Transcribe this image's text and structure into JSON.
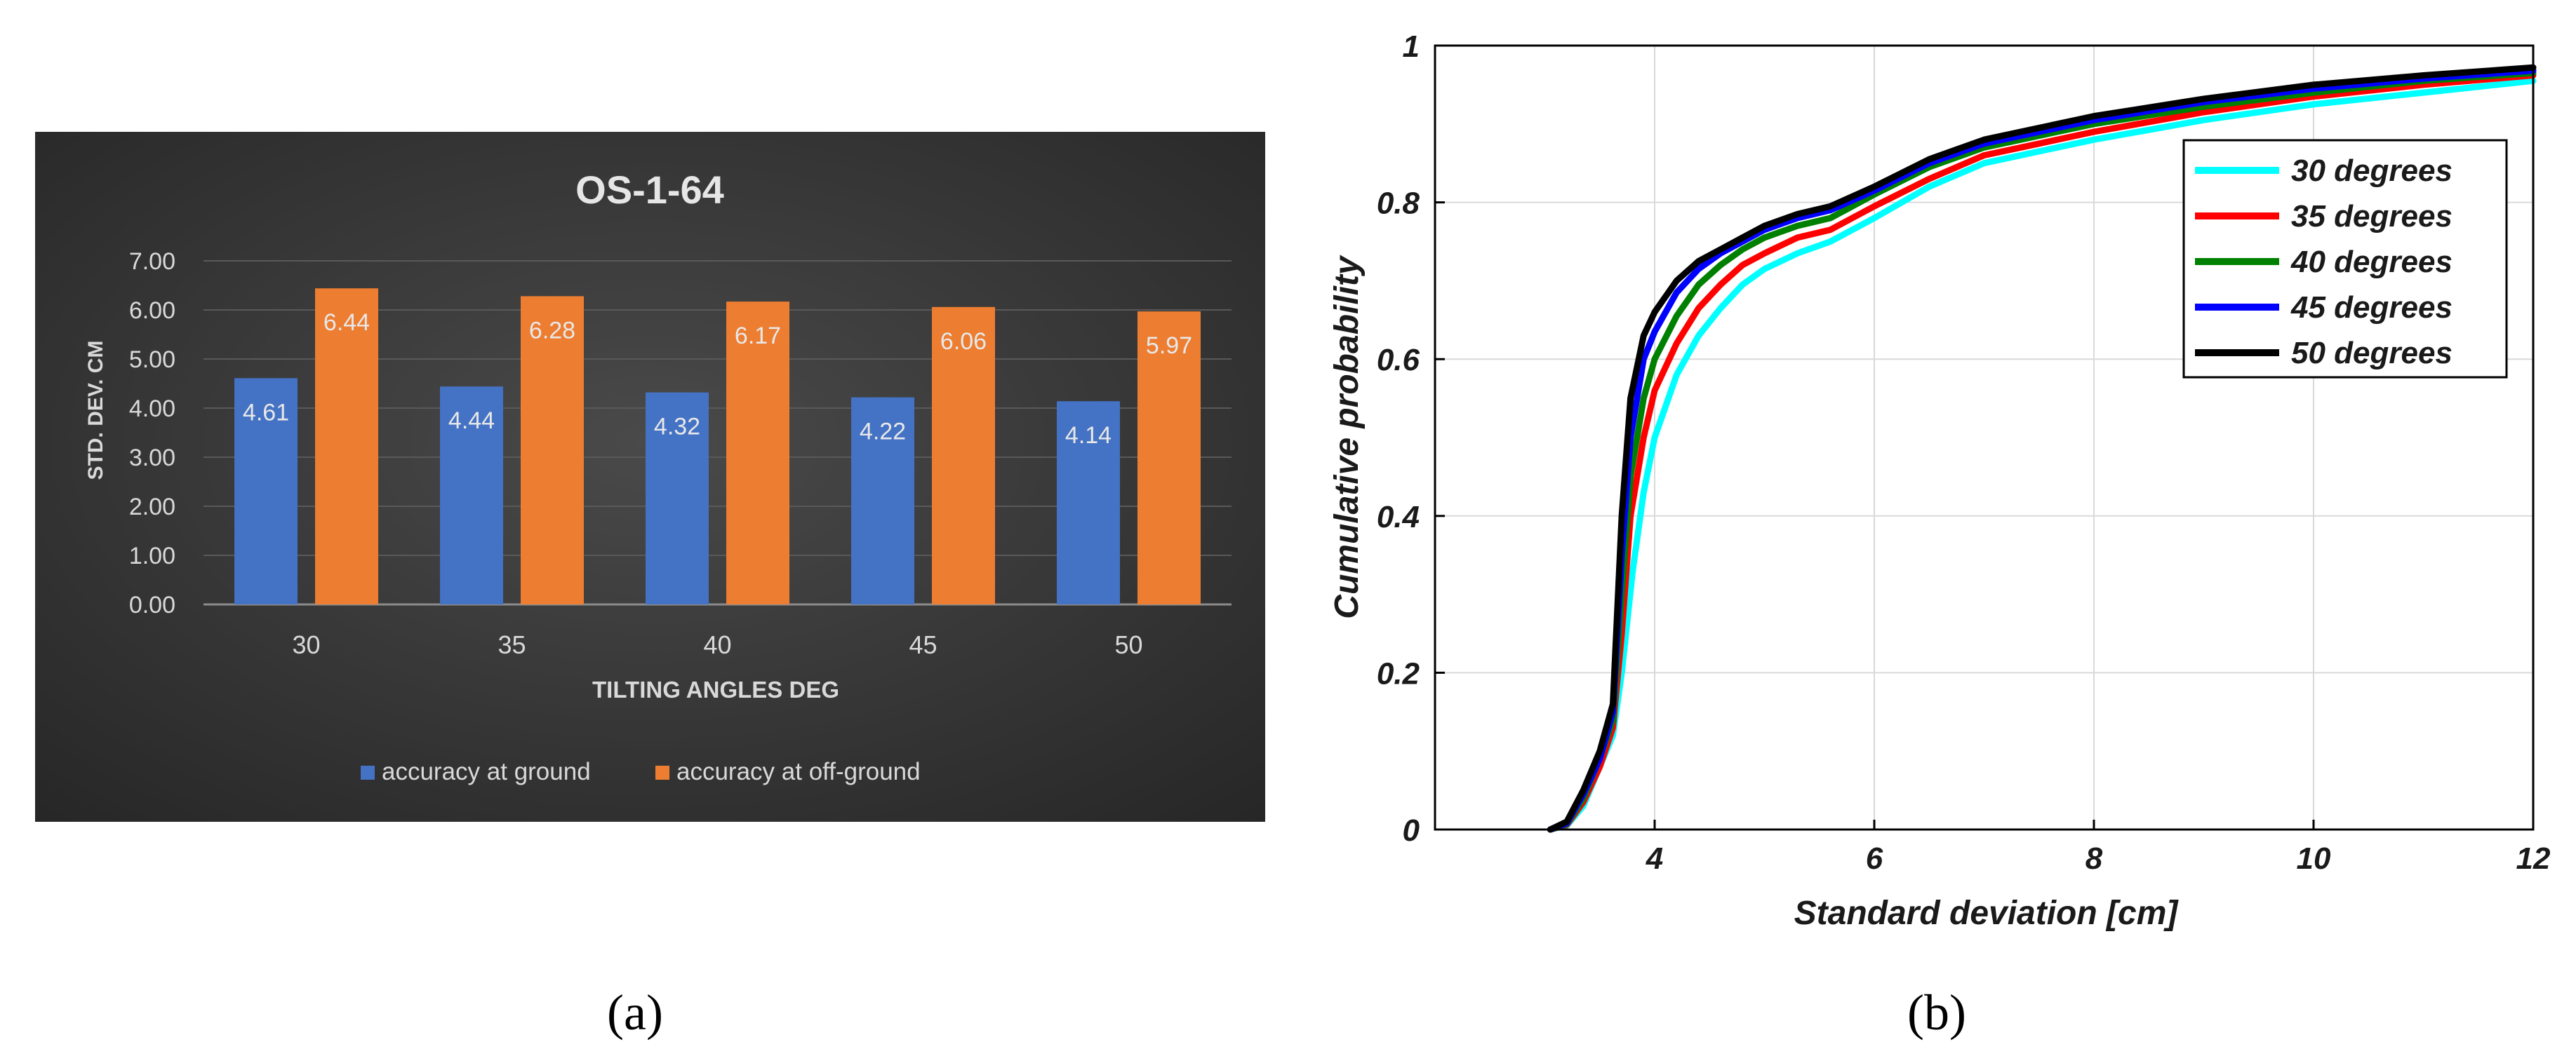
{
  "panel_labels": {
    "a": "(a)",
    "b": "(b)"
  },
  "chart_data": [
    {
      "type": "bar",
      "title": "OS-1-64",
      "xlabel": "TILTING ANGLES DEG",
      "ylabel": "STD. DEV. CM",
      "categories": [
        "30",
        "35",
        "40",
        "45",
        "50"
      ],
      "ylim": [
        0,
        7
      ],
      "yticks": [
        "0.00",
        "1.00",
        "2.00",
        "3.00",
        "4.00",
        "5.00",
        "6.00",
        "7.00"
      ],
      "grid": true,
      "legend_position": "bottom",
      "series": [
        {
          "name": "accuracy at ground",
          "values": [
            4.61,
            4.44,
            4.32,
            4.22,
            4.14
          ],
          "labels": [
            "4.61",
            "4.44",
            "4.32",
            "4.22",
            "4.14"
          ],
          "color": "#4472c4"
        },
        {
          "name": "accuracy at off-ground",
          "values": [
            6.44,
            6.28,
            6.17,
            6.06,
            5.97
          ],
          "labels": [
            "6.44",
            "6.28",
            "6.17",
            "6.06",
            "5.97"
          ],
          "color": "#ed7d31"
        }
      ],
      "colors": {
        "background": "#333333",
        "text": "#d9d9d9",
        "title": "#e6e6e6",
        "grid": "#595959"
      }
    },
    {
      "type": "line",
      "xlabel": "Standard deviation [cm]",
      "ylabel": "Cumulative probability",
      "xlim": [
        2.0,
        12
      ],
      "ylim": [
        0,
        1
      ],
      "xticks": [
        4,
        6,
        8,
        10,
        12
      ],
      "xtick_labels": [
        "4",
        "6",
        "8",
        "10",
        "12"
      ],
      "yticks": [
        0,
        0.2,
        0.4,
        0.6,
        0.8,
        1
      ],
      "ytick_labels": [
        "0",
        "0.2",
        "0.4",
        "0.6",
        "0.8",
        "1"
      ],
      "grid": true,
      "legend_position": "top-right",
      "series": [
        {
          "name": "30 degrees",
          "color": "#00ffff",
          "x": [
            3.05,
            3.2,
            3.35,
            3.5,
            3.62,
            3.7,
            3.8,
            3.9,
            4.0,
            4.2,
            4.4,
            4.6,
            4.8,
            5.0,
            5.3,
            5.6,
            6.0,
            6.5,
            7.0,
            7.5,
            8.0,
            9.0,
            10.0,
            11.0,
            12.0
          ],
          "y": [
            0,
            0.005,
            0.03,
            0.08,
            0.12,
            0.2,
            0.33,
            0.43,
            0.5,
            0.58,
            0.63,
            0.665,
            0.695,
            0.715,
            0.735,
            0.75,
            0.78,
            0.82,
            0.85,
            0.865,
            0.88,
            0.905,
            0.925,
            0.94,
            0.955
          ]
        },
        {
          "name": "35 degrees",
          "color": "#ff0000",
          "x": [
            3.05,
            3.2,
            3.35,
            3.5,
            3.62,
            3.7,
            3.78,
            3.9,
            4.0,
            4.2,
            4.4,
            4.6,
            4.8,
            5.0,
            5.3,
            5.6,
            6.0,
            6.5,
            7.0,
            7.5,
            8.0,
            9.0,
            10.0,
            11.0,
            12.0
          ],
          "y": [
            0,
            0.006,
            0.035,
            0.08,
            0.13,
            0.25,
            0.4,
            0.5,
            0.56,
            0.62,
            0.665,
            0.695,
            0.72,
            0.735,
            0.755,
            0.765,
            0.795,
            0.83,
            0.86,
            0.875,
            0.89,
            0.915,
            0.935,
            0.95,
            0.962
          ]
        },
        {
          "name": "40 degrees",
          "color": "#008000",
          "x": [
            3.05,
            3.2,
            3.35,
            3.5,
            3.62,
            3.7,
            3.78,
            3.9,
            4.0,
            4.2,
            4.4,
            4.6,
            4.8,
            5.0,
            5.3,
            5.6,
            6.0,
            6.5,
            7.0,
            7.5,
            8.0,
            9.0,
            10.0,
            11.0,
            12.0
          ],
          "y": [
            0,
            0.007,
            0.04,
            0.09,
            0.14,
            0.3,
            0.45,
            0.55,
            0.6,
            0.655,
            0.695,
            0.72,
            0.74,
            0.755,
            0.77,
            0.78,
            0.81,
            0.845,
            0.87,
            0.885,
            0.9,
            0.922,
            0.94,
            0.955,
            0.965
          ]
        },
        {
          "name": "45 degrees",
          "color": "#0000ff",
          "x": [
            3.05,
            3.2,
            3.35,
            3.5,
            3.62,
            3.7,
            3.78,
            3.9,
            4.0,
            4.2,
            4.4,
            4.6,
            4.8,
            5.0,
            5.3,
            5.6,
            6.0,
            6.5,
            7.0,
            7.5,
            8.0,
            9.0,
            10.0,
            11.0,
            12.0
          ],
          "y": [
            0,
            0.008,
            0.045,
            0.09,
            0.15,
            0.35,
            0.5,
            0.6,
            0.635,
            0.685,
            0.715,
            0.735,
            0.75,
            0.765,
            0.78,
            0.79,
            0.815,
            0.85,
            0.875,
            0.89,
            0.905,
            0.928,
            0.945,
            0.958,
            0.968
          ]
        },
        {
          "name": "50 degrees",
          "color": "#000000",
          "x": [
            3.05,
            3.2,
            3.35,
            3.5,
            3.62,
            3.7,
            3.78,
            3.9,
            4.0,
            4.2,
            4.4,
            4.6,
            4.8,
            5.0,
            5.3,
            5.6,
            6.0,
            6.5,
            7.0,
            7.5,
            8.0,
            9.0,
            10.0,
            11.0,
            12.0
          ],
          "y": [
            0,
            0.01,
            0.05,
            0.1,
            0.16,
            0.4,
            0.55,
            0.63,
            0.66,
            0.7,
            0.725,
            0.74,
            0.755,
            0.77,
            0.785,
            0.795,
            0.82,
            0.855,
            0.88,
            0.895,
            0.91,
            0.932,
            0.95,
            0.962,
            0.972
          ]
        }
      ]
    }
  ]
}
